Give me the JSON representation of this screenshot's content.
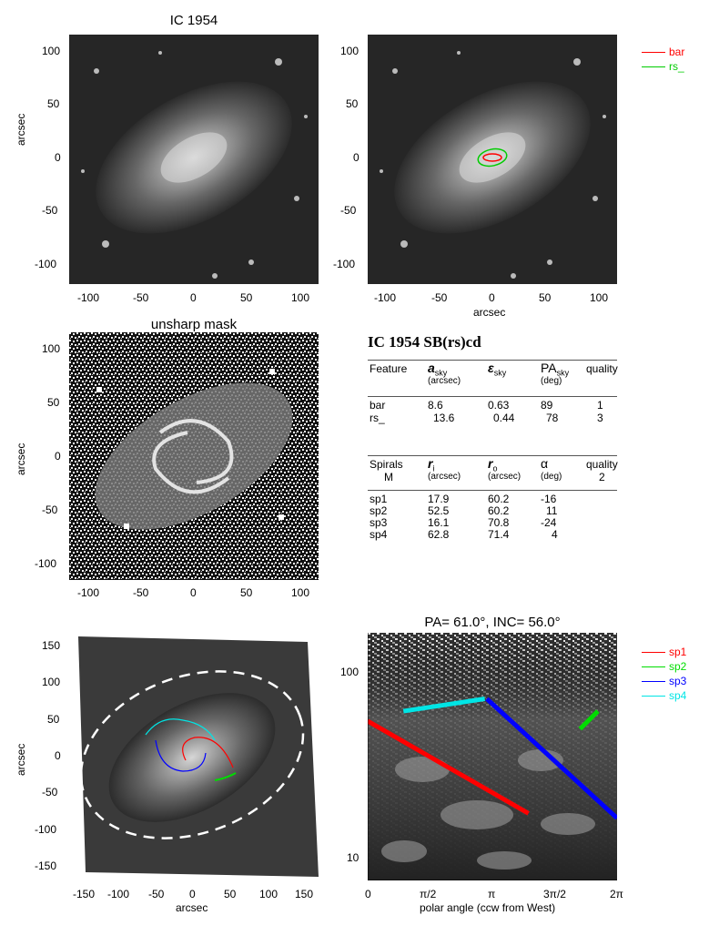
{
  "panel1": {
    "title": "IC 1954",
    "ylabel": "arcsec",
    "xticks": [
      "-100",
      "-50",
      "0",
      "50",
      "100"
    ],
    "yticks": [
      "100",
      "50",
      "0",
      "-50",
      "-100"
    ]
  },
  "panel2": {
    "xlabel": "arcsec",
    "xticks": [
      "-100",
      "-50",
      "0",
      "50",
      "100"
    ],
    "yticks": [
      "100",
      "50",
      "0",
      "-50",
      "-100"
    ],
    "legend": [
      {
        "label": "bar",
        "color": "#ff0000"
      },
      {
        "label": "rs_",
        "color": "#00cc00"
      }
    ]
  },
  "panel3": {
    "title": "unsharp mask",
    "ylabel": "arcsec",
    "xticks": [
      "-100",
      "-50",
      "0",
      "50",
      "100"
    ],
    "yticks": [
      "100",
      "50",
      "0",
      "-50",
      "-100"
    ]
  },
  "table": {
    "heading": "IC 1954  SB(rs)cd",
    "feat_headers": [
      {
        "main": "Feature",
        "sub": ""
      },
      {
        "main": "a",
        "sub2": "sky",
        "sub": "(arcsec)"
      },
      {
        "main": "ε",
        "sub2": "sky",
        "sub": ""
      },
      {
        "main": "PA",
        "sub2": "sky",
        "sub": "(deg)"
      },
      {
        "main": "quality",
        "sub": ""
      }
    ],
    "feat_rows": [
      [
        "bar",
        "8.6",
        "0.63",
        "89",
        "1"
      ],
      [
        "rs_",
        "13.6",
        "0.44",
        "78",
        "3"
      ]
    ],
    "sp_headers": [
      {
        "main": "Spirals",
        "sub": "M"
      },
      {
        "main": "r",
        "sub2": "i",
        "sub": "(arcsec)"
      },
      {
        "main": "r",
        "sub2": "o",
        "sub": "(arcsec)"
      },
      {
        "main": "α",
        "sub": "(deg)"
      },
      {
        "main": "quality",
        "sub": "2"
      }
    ],
    "sp_rows": [
      [
        "sp1",
        "17.9",
        "60.2",
        "-16"
      ],
      [
        "sp2",
        "52.5",
        "60.2",
        "11"
      ],
      [
        "sp3",
        "16.1",
        "70.8",
        "-24"
      ],
      [
        "sp4",
        "62.8",
        "71.4",
        "4"
      ]
    ]
  },
  "panel5": {
    "xlabel": "arcsec",
    "ylabel": "arcsec",
    "xticks": [
      "-150",
      "-100",
      "-50",
      "0",
      "50",
      "100",
      "150"
    ],
    "yticks": [
      "150",
      "100",
      "50",
      "0",
      "-50",
      "-100",
      "-150"
    ]
  },
  "panel6": {
    "title": "PA= 61.0°, INC= 56.0°",
    "xlabel": "polar angle (ccw from West)",
    "xticks": [
      "0",
      "π/2",
      "π",
      "3π/2",
      "2π"
    ],
    "yticks": [
      "100",
      "10"
    ],
    "legend": [
      {
        "label": "sp1",
        "color": "#ff0000"
      },
      {
        "label": "sp2",
        "color": "#00dd00"
      },
      {
        "label": "sp3",
        "color": "#0000ff"
      },
      {
        "label": "sp4",
        "color": "#00e5e5"
      }
    ]
  },
  "chart_data": [
    {
      "type": "line",
      "title": "PA= 61.0°, INC= 56.0°",
      "xlabel": "polar angle (ccw from West)",
      "ylabel": "",
      "log_y": true,
      "xlim": [
        0,
        6.283
      ],
      "ylim": [
        8,
        160
      ],
      "series": [
        {
          "name": "sp1",
          "x": [
            0,
            4.05
          ],
          "y": [
            55,
            18
          ]
        },
        {
          "name": "sp2",
          "x": [
            5.35,
            5.8
          ],
          "y": [
            50,
            62
          ]
        },
        {
          "name": "sp3",
          "x": [
            3.0,
            6.283
          ],
          "y": [
            72,
            17
          ]
        },
        {
          "name": "sp4",
          "x": [
            0.9,
            2.95
          ],
          "y": [
            62,
            72
          ]
        }
      ]
    }
  ]
}
